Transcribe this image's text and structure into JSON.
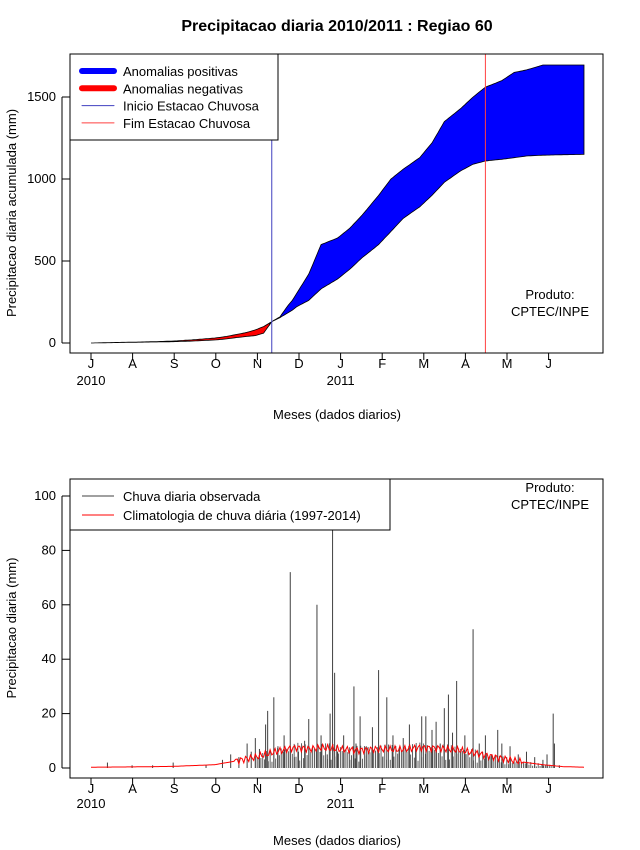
{
  "chart_data": [
    {
      "type": "area",
      "title": "Precipitacao diaria 2010/2011 : Regiao 60",
      "xlabel": "Meses (dados diarios)",
      "ylabel": "Precipitacao diaria acumulada (mm)",
      "ylim": [
        0,
        1750
      ],
      "yticks": [
        0,
        500,
        1000,
        1500
      ],
      "month_labels": [
        "J",
        "A",
        "S",
        "O",
        "N",
        "D",
        "J",
        "F",
        "M",
        "A",
        "M",
        "J"
      ],
      "year_labels": [
        {
          "month_index": 0,
          "label": "2010"
        },
        {
          "month_index": 6,
          "label": "2011"
        }
      ],
      "legend": [
        {
          "label": "Anomalias positivas",
          "color": "#0000ff",
          "kind": "thick"
        },
        {
          "label": "Anomalias negativas",
          "color": "#ff0000",
          "kind": "thick"
        },
        {
          "label": "Inicio Estacao Chuvosa",
          "color": "#4040c0",
          "kind": "line"
        },
        {
          "label": "Fim Estacao Chuvosa",
          "color": "#ff4040",
          "kind": "line"
        }
      ],
      "annotation": [
        "Produto:",
        "CPTEC/INPE"
      ],
      "wet_season_start_month": 4.4,
      "wet_season_end_month": 9.6,
      "x_months": [
        0,
        0.5,
        1,
        1.5,
        2,
        2.5,
        3,
        3.3,
        3.6,
        3.8,
        4.0,
        4.2,
        4.4,
        4.6,
        4.8,
        4.9,
        5.0,
        5.3,
        5.6,
        6.0,
        6.3,
        6.6,
        7.0,
        7.3,
        7.6,
        8.0,
        8.3,
        8.6,
        9.0,
        9.3,
        9.6,
        10.0,
        10.3,
        10.6,
        11.0,
        11.5,
        12.0
      ],
      "observed_mm": [
        0,
        2,
        4,
        6,
        8,
        12,
        18,
        25,
        35,
        40,
        45,
        60,
        130,
        160,
        230,
        260,
        300,
        420,
        600,
        640,
        700,
        780,
        900,
        1000,
        1060,
        1130,
        1220,
        1350,
        1430,
        1500,
        1560,
        1600,
        1650,
        1665,
        1695,
        1695,
        1695
      ],
      "climatology_mm": [
        0,
        3,
        5,
        8,
        12,
        20,
        30,
        40,
        55,
        65,
        80,
        100,
        130,
        155,
        185,
        200,
        220,
        260,
        330,
        390,
        450,
        520,
        600,
        680,
        760,
        830,
        900,
        980,
        1050,
        1090,
        1110,
        1120,
        1130,
        1140,
        1145,
        1148,
        1150
      ]
    },
    {
      "type": "bar",
      "xlabel": "Meses (dados diarios)",
      "ylabel": "Precipitacao diaria (mm)",
      "ylim": [
        0,
        105
      ],
      "yticks": [
        0,
        20,
        40,
        60,
        80,
        100
      ],
      "month_labels": [
        "J",
        "A",
        "S",
        "O",
        "N",
        "D",
        "J",
        "F",
        "M",
        "A",
        "M",
        "J"
      ],
      "year_labels": [
        {
          "month_index": 0,
          "label": "2010"
        },
        {
          "month_index": 6,
          "label": "2011"
        }
      ],
      "legend": [
        {
          "label": "Chuva diaria observada",
          "color": "#404040"
        },
        {
          "label": "Climatologia de chuva diária (1997-2014)",
          "color": "#ff0000"
        }
      ],
      "annotation": [
        "Produto:",
        "CPTEC/INPE"
      ],
      "daily_observed": [
        {
          "month": 0.4,
          "mm": 2
        },
        {
          "month": 1.0,
          "mm": 1
        },
        {
          "month": 1.5,
          "mm": 1
        },
        {
          "month": 2.0,
          "mm": 2
        },
        {
          "month": 2.8,
          "mm": 1
        },
        {
          "month": 3.2,
          "mm": 3
        },
        {
          "month": 3.4,
          "mm": 5
        },
        {
          "month": 3.6,
          "mm": 4
        },
        {
          "month": 3.8,
          "mm": 9
        },
        {
          "month": 3.9,
          "mm": 6
        },
        {
          "month": 4.0,
          "mm": 11
        },
        {
          "month": 4.1,
          "mm": 7
        },
        {
          "month": 4.25,
          "mm": 16
        },
        {
          "month": 4.3,
          "mm": 21
        },
        {
          "month": 4.45,
          "mm": 26
        },
        {
          "month": 4.55,
          "mm": 8
        },
        {
          "month": 4.7,
          "mm": 12
        },
        {
          "month": 4.85,
          "mm": 72
        },
        {
          "month": 4.95,
          "mm": 4
        },
        {
          "month": 5.05,
          "mm": 6
        },
        {
          "month": 5.2,
          "mm": 10
        },
        {
          "month": 5.3,
          "mm": 18
        },
        {
          "month": 5.5,
          "mm": 60
        },
        {
          "month": 5.6,
          "mm": 12
        },
        {
          "month": 5.75,
          "mm": 5
        },
        {
          "month": 5.82,
          "mm": 20
        },
        {
          "month": 5.88,
          "mm": 88
        },
        {
          "month": 5.93,
          "mm": 35
        },
        {
          "month": 6.0,
          "mm": 6
        },
        {
          "month": 6.15,
          "mm": 12
        },
        {
          "month": 6.3,
          "mm": 3
        },
        {
          "month": 6.4,
          "mm": 30
        },
        {
          "month": 6.45,
          "mm": 9
        },
        {
          "month": 6.55,
          "mm": 19
        },
        {
          "month": 6.7,
          "mm": 8
        },
        {
          "month": 6.85,
          "mm": 15
        },
        {
          "month": 7.0,
          "mm": 36
        },
        {
          "month": 7.1,
          "mm": 4
        },
        {
          "month": 7.2,
          "mm": 26
        },
        {
          "month": 7.35,
          "mm": 12
        },
        {
          "month": 7.5,
          "mm": 7
        },
        {
          "month": 7.6,
          "mm": 11
        },
        {
          "month": 7.75,
          "mm": 16
        },
        {
          "month": 7.9,
          "mm": 8
        },
        {
          "month": 8.05,
          "mm": 19
        },
        {
          "month": 8.15,
          "mm": 19
        },
        {
          "month": 8.3,
          "mm": 14
        },
        {
          "month": 8.4,
          "mm": 17
        },
        {
          "month": 8.5,
          "mm": 9
        },
        {
          "month": 8.6,
          "mm": 22
        },
        {
          "month": 8.7,
          "mm": 27
        },
        {
          "month": 8.8,
          "mm": 13
        },
        {
          "month": 8.9,
          "mm": 32
        },
        {
          "month": 9.0,
          "mm": 7
        },
        {
          "month": 9.1,
          "mm": 12
        },
        {
          "month": 9.3,
          "mm": 51
        },
        {
          "month": 9.45,
          "mm": 9
        },
        {
          "month": 9.6,
          "mm": 12
        },
        {
          "month": 9.75,
          "mm": 5
        },
        {
          "month": 9.9,
          "mm": 14
        },
        {
          "month": 10.0,
          "mm": 9
        },
        {
          "month": 10.2,
          "mm": 8
        },
        {
          "month": 10.4,
          "mm": 5
        },
        {
          "month": 10.6,
          "mm": 6
        },
        {
          "month": 10.8,
          "mm": 4
        },
        {
          "month": 11.0,
          "mm": 3
        },
        {
          "month": 11.1,
          "mm": 5
        },
        {
          "month": 11.25,
          "mm": 20
        },
        {
          "month": 11.28,
          "mm": 9
        },
        {
          "month": 11.4,
          "mm": 1
        }
      ],
      "climatology_x_months": [
        0,
        1,
        2,
        3,
        3.5,
        4.0,
        4.5,
        4.8,
        5.0,
        5.3,
        5.6,
        6.0,
        6.5,
        7.0,
        7.5,
        8.0,
        8.5,
        9.0,
        9.5,
        10.0,
        10.5,
        11.0,
        11.5,
        12.0
      ],
      "climatology_mm": [
        0.3,
        0.4,
        0.6,
        1.2,
        2.5,
        4,
        6,
        7,
        7.5,
        7,
        7.5,
        7,
        6.5,
        7,
        6.8,
        7.5,
        7.2,
        6.5,
        5,
        3.5,
        2.2,
        1.2,
        0.5,
        0.3
      ]
    }
  ]
}
